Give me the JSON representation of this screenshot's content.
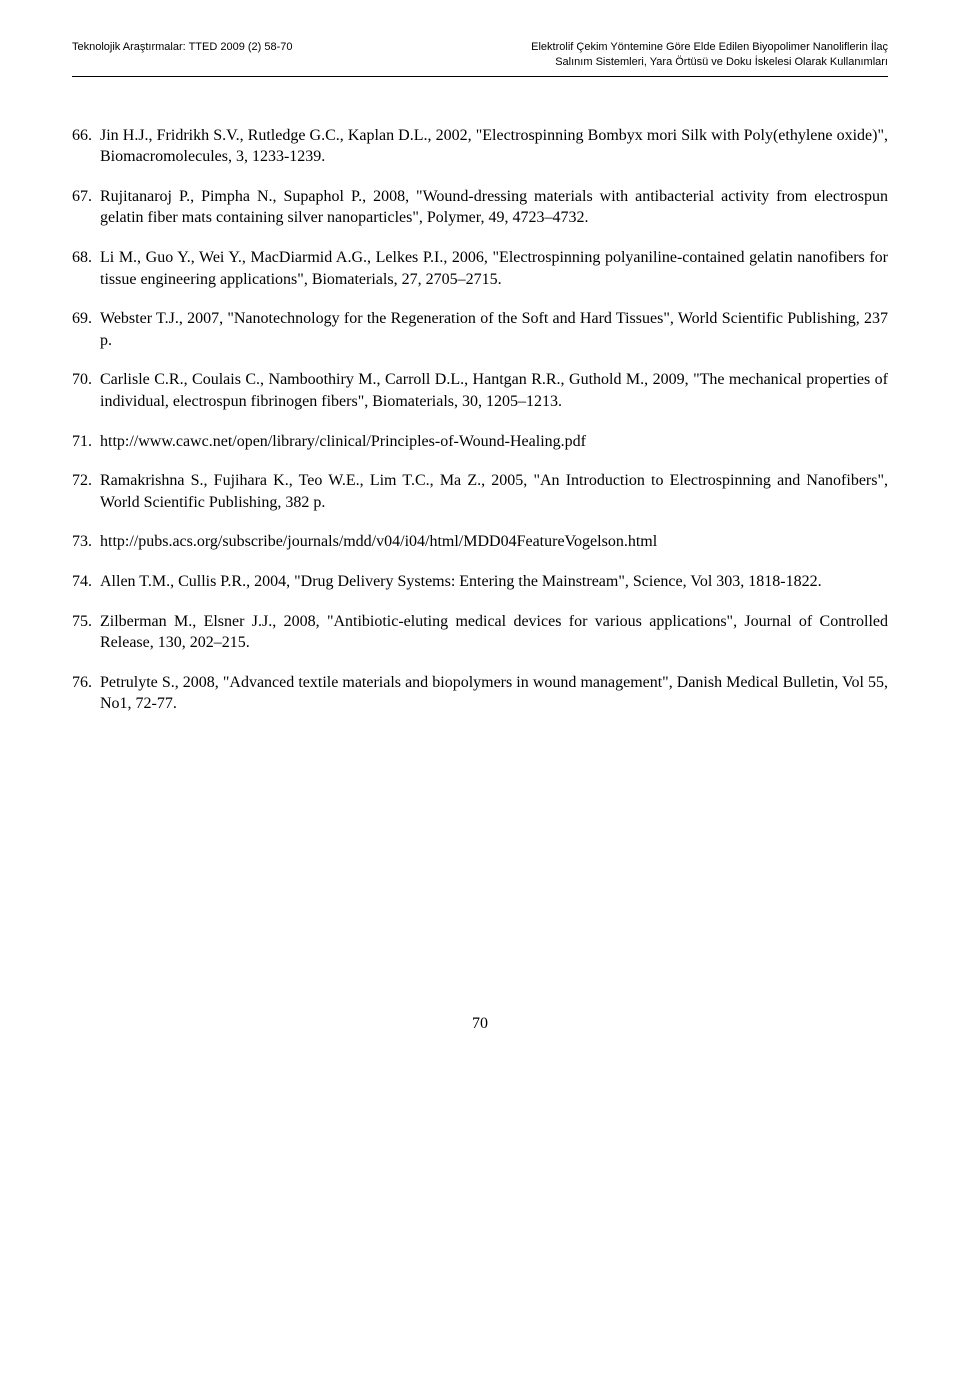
{
  "header": {
    "left": "Teknolojik Araştırmalar: TTED 2009 (2) 58-70",
    "right_line1": "Elektrolif Çekim Yöntemine Göre Elde Edilen Biyopolimer Nanoliflerin İlaç",
    "right_line2": "Salınım Sistemleri, Yara Örtüsü ve Doku İskelesi Olarak Kullanımları"
  },
  "references": [
    {
      "num": "66.",
      "text": "Jin H.J., Fridrikh S.V., Rutledge G.C., Kaplan D.L., 2002, \"Electrospinning Bombyx mori Silk with Poly(ethylene oxide)\", Biomacromolecules, 3, 1233-1239."
    },
    {
      "num": "67.",
      "text": "Rujitanaroj P., Pimpha N., Supaphol P., 2008, \"Wound-dressing materials with antibacterial activity from electrospun gelatin fiber mats containing silver nanoparticles\", Polymer, 49, 4723–4732."
    },
    {
      "num": "68.",
      "text": "Li M., Guo Y., Wei Y., MacDiarmid A.G., Lelkes P.I., 2006, \"Electrospinning polyaniline-contained gelatin nanofibers for tissue engineering applications\", Biomaterials, 27, 2705–2715."
    },
    {
      "num": "69.",
      "text": "Webster T.J., 2007, \"Nanotechnology for the Regeneration of the Soft and Hard Tissues\", World Scientific Publishing, 237 p."
    },
    {
      "num": "70.",
      "text": "Carlisle C.R., Coulais C., Namboothiry M., Carroll D.L., Hantgan R.R., Guthold M., 2009, \"The mechanical properties of individual, electrospun fibrinogen fibers\", Biomaterials, 30, 1205–1213."
    },
    {
      "num": "71.",
      "text": "http://www.cawc.net/open/library/clinical/Principles-of-Wound-Healing.pdf"
    },
    {
      "num": "72.",
      "text": "Ramakrishna S., Fujihara K., Teo W.E., Lim T.C., Ma Z., 2005, \"An Introduction to Electrospinning and Nanofibers\", World Scientific Publishing, 382 p."
    },
    {
      "num": "73.",
      "text": "http://pubs.acs.org/subscribe/journals/mdd/v04/i04/html/MDD04FeatureVogelson.html"
    },
    {
      "num": "74.",
      "text": "Allen T.M., Cullis P.R., 2004, \"Drug Delivery Systems: Entering the Mainstream\", Science, Vol 303, 1818-1822."
    },
    {
      "num": "75.",
      "text": "Zilberman M., Elsner J.J., 2008, \"Antibiotic-eluting medical devices for various applications\", Journal of Controlled Release, 130, 202–215."
    },
    {
      "num": "76.",
      "text": "Petrulyte S., 2008, \"Advanced textile materials and biopolymers in wound management\", Danish Medical Bulletin, Vol 55, No1, 72-77."
    }
  ],
  "page_number": "70"
}
